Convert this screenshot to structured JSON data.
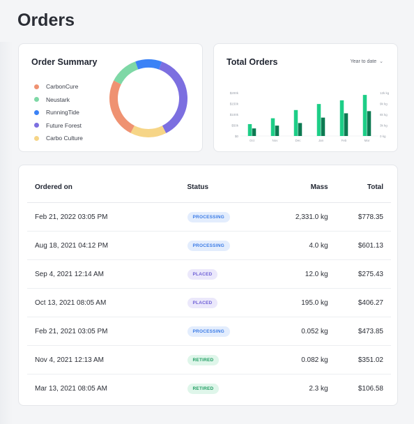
{
  "page": {
    "title": "Orders"
  },
  "summary": {
    "title": "Order Summary",
    "items": [
      {
        "label": "CarbonCure",
        "color": "#ef9272",
        "share": 0.25
      },
      {
        "label": "Neustark",
        "color": "#7ed8a6",
        "share": 0.12
      },
      {
        "label": "RunningTide",
        "color": "#3b82f6",
        "share": 0.11
      },
      {
        "label": "Future Forest",
        "color": "#7c6fe0",
        "share": 0.37
      },
      {
        "label": "Carbo Culture",
        "color": "#f6d587",
        "share": 0.15
      }
    ]
  },
  "total_orders": {
    "title": "Total Orders",
    "range_label": "Year to date"
  },
  "chart_data": {
    "type": "bar",
    "categories": [
      "Oct",
      "Nov",
      "Dec",
      "Jan",
      "Feb",
      "Mar"
    ],
    "series": [
      {
        "name": "",
        "color": "#1dce87",
        "values": [
          55,
          82,
          120,
          148,
          165,
          190
        ]
      },
      {
        "name": "",
        "color": "#0d7a52",
        "values": [
          35,
          48,
          60,
          85,
          105,
          115
        ]
      }
    ],
    "y_left_ticks": [
      "$200k",
      "$150k",
      "$100k",
      "$50k",
      "$0"
    ],
    "y_right_ticks": [
      "12k kg",
      "9k kg",
      "6k kg",
      "3k kg",
      "0 kg"
    ],
    "ylim": [
      0,
      200
    ]
  },
  "table": {
    "headers": {
      "ordered_on": "Ordered on",
      "status": "Status",
      "mass": "Mass",
      "total": "Total"
    },
    "status_styles": {
      "PROCESSING": {
        "bg": "#e3edfd",
        "fg": "#3b7be6"
      },
      "PLACED": {
        "bg": "#ebe8fb",
        "fg": "#6e5fd6"
      },
      "RETIRED": {
        "bg": "#dff6ea",
        "fg": "#1f9d62"
      }
    },
    "rows": [
      {
        "ordered_on": "Feb 21, 2022 03:05 PM",
        "status": "PROCESSING",
        "mass": "2,331.0 kg",
        "total": "$778.35"
      },
      {
        "ordered_on": "Aug 18, 2021 04:12 PM",
        "status": "PROCESSING",
        "mass": "4.0 kg",
        "total": "$601.13"
      },
      {
        "ordered_on": "Sep 4, 2021 12:14 AM",
        "status": "PLACED",
        "mass": "12.0 kg",
        "total": "$275.43"
      },
      {
        "ordered_on": "Oct 13, 2021 08:05 AM",
        "status": "PLACED",
        "mass": "195.0 kg",
        "total": "$406.27"
      },
      {
        "ordered_on": "Feb 21, 2021 03:05 PM",
        "status": "PROCESSING",
        "mass": "0.052 kg",
        "total": "$473.85"
      },
      {
        "ordered_on": "Nov 4, 2021 12:13 AM",
        "status": "RETIRED",
        "mass": "0.082 kg",
        "total": "$351.02"
      },
      {
        "ordered_on": "Mar 13, 2021 08:05 AM",
        "status": "RETIRED",
        "mass": "2.3 kg",
        "total": "$106.58"
      }
    ]
  }
}
